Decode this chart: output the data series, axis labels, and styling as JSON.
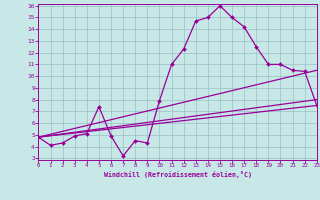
{
  "xlabel": "Windchill (Refroidissement éolien,°C)",
  "xlim": [
    0,
    23
  ],
  "ylim": [
    3,
    16
  ],
  "xticks": [
    0,
    1,
    2,
    3,
    4,
    5,
    6,
    7,
    8,
    9,
    10,
    11,
    12,
    13,
    14,
    15,
    16,
    17,
    18,
    19,
    20,
    21,
    22,
    23
  ],
  "yticks": [
    3,
    4,
    5,
    6,
    7,
    8,
    9,
    10,
    11,
    12,
    13,
    14,
    15,
    16
  ],
  "bg_color": "#c8e8e8",
  "grid_color": "#a0c8c8",
  "line_color": "#990099",
  "main_line": {
    "x": [
      0,
      1,
      2,
      3,
      4,
      5,
      6,
      7,
      8,
      9,
      10,
      11,
      12,
      13,
      14,
      15,
      16,
      17,
      18,
      19,
      20,
      21,
      22,
      23
    ],
    "y": [
      4.8,
      4.1,
      4.3,
      4.9,
      5.1,
      7.4,
      4.9,
      3.2,
      4.5,
      4.3,
      7.9,
      11.0,
      12.3,
      14.7,
      15.0,
      16.0,
      15.0,
      14.2,
      12.5,
      11.0,
      11.0,
      10.5,
      10.4,
      7.5
    ]
  },
  "trend1": {
    "x": [
      0,
      23
    ],
    "y": [
      4.8,
      10.5
    ]
  },
  "trend2": {
    "x": [
      0,
      23
    ],
    "y": [
      4.8,
      8.0
    ]
  },
  "trend3": {
    "x": [
      0,
      23
    ],
    "y": [
      4.8,
      7.5
    ]
  }
}
